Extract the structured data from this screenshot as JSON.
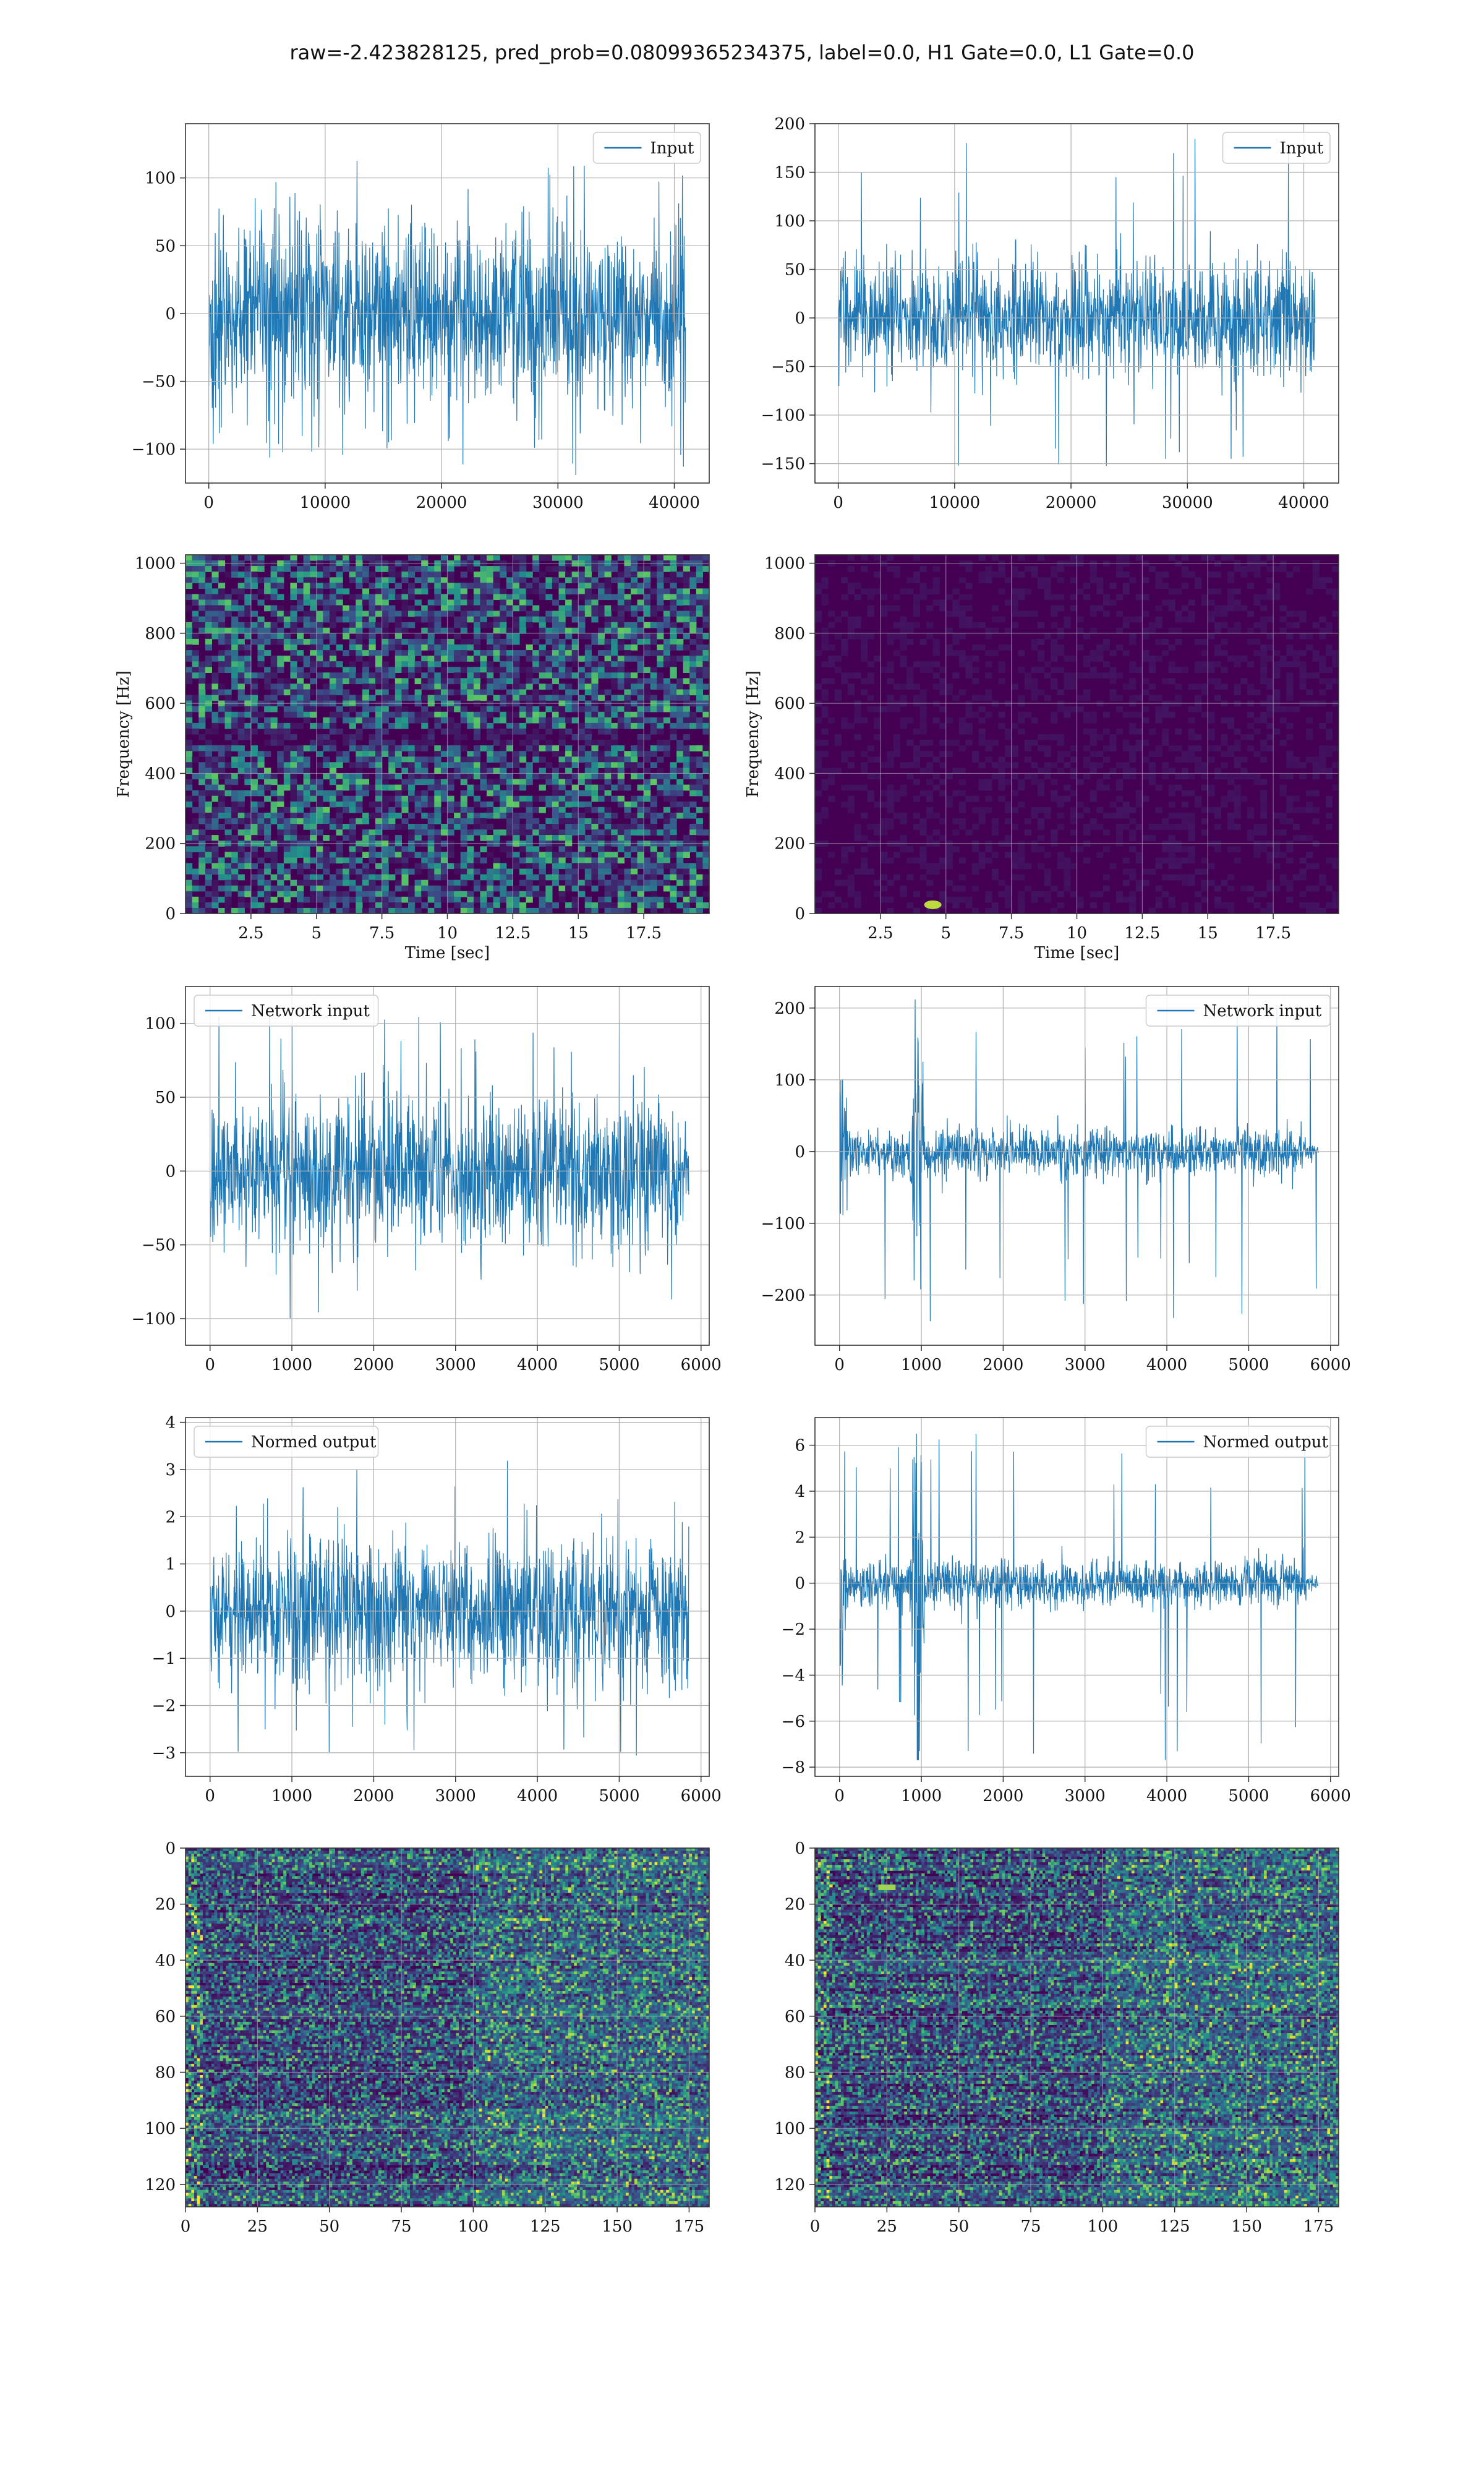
{
  "suptitle": "raw=-2.423828125, pred_prob=0.08099365234375, label=0.0, H1 Gate=0.0, L1 Gate=0.0",
  "colors": {
    "line": "#1f77b4",
    "grid": "#b0b0b0",
    "axis": "#333333",
    "viridis_low": "#440154",
    "viridis_mid": "#21918c",
    "viridis_high": "#fde725"
  },
  "chart_data": [
    {
      "id": "input-h1",
      "type": "line",
      "legend": "Input",
      "legend_loc": "upper right",
      "xlim": [
        -2000,
        43000
      ],
      "ylim": [
        -125,
        140
      ],
      "xticks": [
        0,
        10000,
        20000,
        30000,
        40000
      ],
      "yticks": [
        -100,
        -50,
        0,
        50,
        100
      ],
      "xlabel": "",
      "ylabel": "",
      "series": [
        {
          "name": "Input",
          "n": 40960,
          "x_range": [
            0,
            40960
          ],
          "envelope_typical": 60,
          "peak_min": -122,
          "peak_max": 117
        }
      ]
    },
    {
      "id": "input-l1",
      "type": "line",
      "legend": "Input",
      "legend_loc": "upper right",
      "xlim": [
        -2000,
        43000
      ],
      "ylim": [
        -170,
        200
      ],
      "xticks": [
        0,
        10000,
        20000,
        30000,
        40000
      ],
      "yticks": [
        -150,
        -100,
        -50,
        0,
        50,
        100,
        150,
        200
      ],
      "xlabel": "",
      "ylabel": "",
      "series": [
        {
          "name": "Input",
          "n": 40960,
          "x_range": [
            0,
            40960
          ],
          "envelope_typical": 55,
          "peak_min": -162,
          "peak_max": 185
        }
      ]
    },
    {
      "id": "spectrogram-h1",
      "type": "heatmap",
      "colormap": "viridis",
      "xlim": [
        0,
        20
      ],
      "ylim": [
        0,
        1024
      ],
      "xticks": [
        2.5,
        5.0,
        7.5,
        10.0,
        12.5,
        15.0,
        17.5
      ],
      "yticks": [
        0,
        200,
        400,
        600,
        800,
        1000
      ],
      "xlabel": "Time [sec]",
      "ylabel": "Frequency [Hz]",
      "note": "broadband noise with dark band near 500 Hz"
    },
    {
      "id": "spectrogram-l1",
      "type": "heatmap",
      "colormap": "viridis",
      "xlim": [
        0,
        20
      ],
      "ylim": [
        0,
        1024
      ],
      "xticks": [
        2.5,
        5.0,
        7.5,
        10.0,
        12.5,
        15.0,
        17.5
      ],
      "yticks": [
        0,
        200,
        400,
        600,
        800,
        1000
      ],
      "xlabel": "Time [sec]",
      "ylabel": "Frequency [Hz]",
      "note": "mostly dark with bright spot near t=4.5 s, f≈25 Hz"
    },
    {
      "id": "network-input-h1",
      "type": "line",
      "legend": "Network input",
      "legend_loc": "upper left",
      "xlim": [
        -300,
        6100
      ],
      "ylim": [
        -118,
        125
      ],
      "xticks": [
        0,
        1000,
        2000,
        3000,
        4000,
        5000,
        6000
      ],
      "yticks": [
        -100,
        -50,
        0,
        50,
        100
      ],
      "xlabel": "",
      "ylabel": "",
      "series": [
        {
          "name": "Network input",
          "n": 5850,
          "x_range": [
            0,
            5850
          ],
          "envelope_typical": 45,
          "peak_min": -105,
          "peak_max": 108
        }
      ]
    },
    {
      "id": "network-input-l1",
      "type": "line",
      "legend": "Network input",
      "legend_loc": "upper right",
      "xlim": [
        -300,
        6100
      ],
      "ylim": [
        -270,
        230
      ],
      "xticks": [
        0,
        1000,
        2000,
        3000,
        4000,
        5000,
        6000
      ],
      "yticks": [
        -200,
        -100,
        0,
        100,
        200
      ],
      "xlabel": "",
      "ylabel": "",
      "series": [
        {
          "name": "Network input",
          "n": 5850,
          "x_range": [
            0,
            5850
          ],
          "envelope_typical": 30,
          "burst_center": 950,
          "peak_min": -240,
          "peak_max": 212
        }
      ]
    },
    {
      "id": "normed-output-h1",
      "type": "line",
      "legend": "Normed output",
      "legend_loc": "upper left",
      "xlim": [
        -300,
        6100
      ],
      "ylim": [
        -3.5,
        4.1
      ],
      "xticks": [
        0,
        1000,
        2000,
        3000,
        4000,
        5000,
        6000
      ],
      "yticks": [
        -3,
        -2,
        -1,
        0,
        1,
        2,
        3,
        4
      ],
      "xlabel": "",
      "ylabel": "",
      "series": [
        {
          "name": "Normed output",
          "n": 5850,
          "x_range": [
            0,
            5850
          ],
          "envelope_typical": 1.4,
          "peak_min": -3.1,
          "peak_max": 3.3
        }
      ]
    },
    {
      "id": "normed-output-l1",
      "type": "line",
      "legend": "Normed output",
      "legend_loc": "upper right",
      "xlim": [
        -300,
        6100
      ],
      "ylim": [
        -8.4,
        7.2
      ],
      "xticks": [
        0,
        1000,
        2000,
        3000,
        4000,
        5000,
        6000
      ],
      "yticks": [
        -8,
        -6,
        -4,
        -2,
        0,
        2,
        4,
        6
      ],
      "xlabel": "",
      "ylabel": "",
      "series": [
        {
          "name": "Normed output",
          "n": 5850,
          "x_range": [
            0,
            5850
          ],
          "envelope_typical": 0.9,
          "burst_center": 950,
          "peak_min": -7.7,
          "peak_max": 6.5
        }
      ]
    },
    {
      "id": "feature-map-h1",
      "type": "heatmap",
      "colormap": "viridis",
      "xlim": [
        0,
        182
      ],
      "ylim": [
        128,
        0
      ],
      "xticks": [
        0,
        25,
        50,
        75,
        100,
        125,
        150,
        175
      ],
      "yticks": [
        0,
        20,
        40,
        60,
        80,
        100,
        120
      ],
      "xlabel": "",
      "ylabel": ""
    },
    {
      "id": "feature-map-l1",
      "type": "heatmap",
      "colormap": "viridis",
      "xlim": [
        0,
        182
      ],
      "ylim": [
        128,
        0
      ],
      "xticks": [
        0,
        25,
        50,
        75,
        100,
        125,
        150,
        175
      ],
      "yticks": [
        0,
        20,
        40,
        60,
        80,
        100,
        120
      ],
      "xlabel": "",
      "ylabel": ""
    }
  ]
}
